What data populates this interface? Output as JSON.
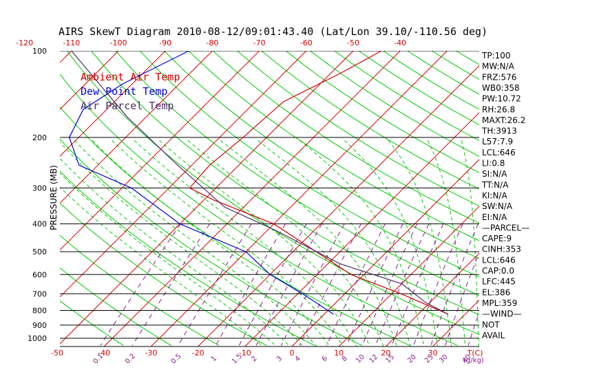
{
  "chart_data": {
    "type": "line",
    "title": "AIRS SkewT Diagram 2010-08-12/09:01:43.40 (Lat/Lon 39.10/-110.56 deg)",
    "ylabel": "PRESSURE (MB)",
    "y_scale": "log",
    "pressure_ticks": [
      100,
      200,
      300,
      400,
      500,
      600,
      700,
      800,
      900,
      1000
    ],
    "top_temp_ticks": [
      -120,
      -110,
      -100,
      -90,
      -80,
      -70,
      -60,
      -50,
      -40
    ],
    "bottom_temp_ticks": [
      -50,
      -40,
      -30,
      -20,
      -10,
      0,
      10,
      20,
      30
    ],
    "bottom_temp_unit": "T(C)",
    "mixing_ratio_ticks": [
      "0.1",
      "0.2",
      "0.5",
      "1",
      "1.5",
      "2",
      "3",
      "4",
      "6",
      "8",
      "10",
      "12",
      "15",
      "20",
      "25",
      "30",
      "40"
    ],
    "mixing_ratio_unit": "(g/kg)",
    "legend": [
      "Ambient Air Temp",
      "Dew Point Temp",
      "Air Parcel Temp"
    ],
    "series": [
      {
        "name": "Ambient Air Temp",
        "color": "#d40000",
        "x_temp_c": [
          26.4,
          12.0,
          -2.8,
          -15.0,
          -30.0,
          -48.0,
          -55.6,
          -56.2,
          -55.0,
          -54.0,
          -48.0,
          -44.0
        ],
        "y_pressure_mb": [
          825,
          700,
          600,
          500,
          400,
          330,
          300,
          250,
          200,
          150,
          120,
          100
        ]
      },
      {
        "name": "Dew Point Temp",
        "color": "#0000d4",
        "x_temp_c": [
          2.0,
          -9.0,
          -20.0,
          -30.0,
          -50.0,
          -68.0,
          -84.0,
          -92.0,
          -95.0,
          -92.0,
          -85.0
        ],
        "y_pressure_mb": [
          825,
          700,
          600,
          500,
          400,
          300,
          250,
          200,
          160,
          130,
          100
        ]
      },
      {
        "name": "Air Parcel Temp",
        "color": "#4b2a66",
        "x_temp_c": [
          26.4,
          19.0,
          10.0,
          -7.5,
          -28.5,
          -44.0,
          -63.0,
          -84.0,
          -110.0
        ],
        "y_pressure_mb": [
          825,
          750,
          646,
          550,
          420,
          350,
          250,
          170,
          100
        ]
      }
    ],
    "indices": [
      "TP:100",
      "MW:N/A",
      "FRZ:576",
      "WB0:358",
      "PW:10.72",
      "RH:26.8",
      "MAXT:26.2",
      "TH:3913",
      "L57:7.9",
      "LCL:646",
      "LI:0.8",
      "SI:N/A",
      "TT:N/A",
      "KI:N/A",
      "SW:N/A",
      "EI:N/A",
      "—PARCEL—",
      "CAPE:9",
      "CINH:353",
      "LCL:646",
      "CAP:0.0",
      "LFC:445",
      "EL:386",
      "MPL:359",
      "—WIND—",
      "NOT",
      "AVAIL"
    ],
    "colors": {
      "isotherm": "#d40000",
      "dry_adiabat": "#00c800",
      "moist_adiabat": "#00c800",
      "mixing_ratio": "#8b1a8b",
      "isobar": "#000000"
    }
  }
}
